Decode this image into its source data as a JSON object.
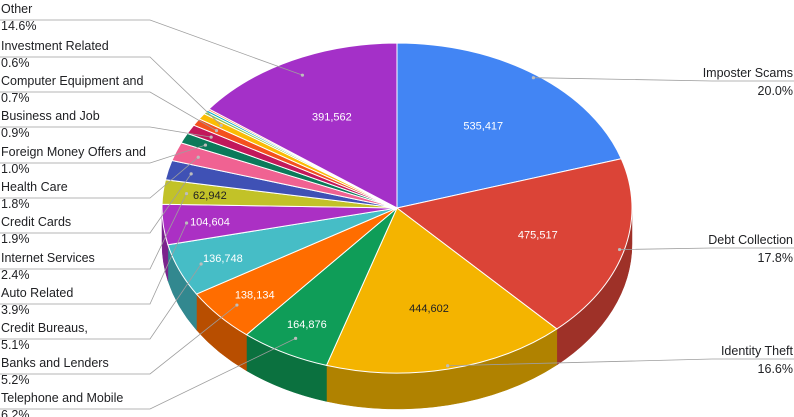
{
  "chart_data": {
    "type": "pie",
    "title": "",
    "style": "3d",
    "legend": "none",
    "slices": [
      {
        "name": "Imposter Scams",
        "value": 535417,
        "value_label": "535,417",
        "percent": "20.0%",
        "color": "#4285f4",
        "side": "right"
      },
      {
        "name": "Debt Collection",
        "value": 475517,
        "value_label": "475,517",
        "percent": "17.8%",
        "color": "#db4437",
        "side": "right"
      },
      {
        "name": "Identity Theft",
        "value": 444602,
        "value_label": "444,602",
        "percent": "16.6%",
        "color": "#f4b400",
        "side": "right"
      },
      {
        "name": "Telephone and Mobile",
        "value": 164876,
        "value_label": "164,876",
        "percent": "6.2%",
        "color": "#0f9d58",
        "side": "left"
      },
      {
        "name": "Banks and Lenders",
        "value": 138134,
        "value_label": "138,134",
        "percent": "5.2%",
        "color": "#ff6d00",
        "side": "left"
      },
      {
        "name": "Credit Bureaus,",
        "value": 136748,
        "value_label": "136,748",
        "percent": "5.1%",
        "color": "#46bdc6",
        "side": "left"
      },
      {
        "name": "Auto Related",
        "value": 104604,
        "value_label": "104,604",
        "percent": "3.9%",
        "color": "#ab30c4",
        "side": "left"
      },
      {
        "name": "Internet Services",
        "value": 62942,
        "value_label": "62,942",
        "percent": "2.4%",
        "color": "#c2c228",
        "side": "left"
      },
      {
        "name": "Credit Cards",
        "value": 50800,
        "value_label": "",
        "percent": "1.9%",
        "color": "#3f51b5",
        "side": "left"
      },
      {
        "name": "Health Care",
        "value": 48100,
        "value_label": "",
        "percent": "1.8%",
        "color": "#f06292",
        "side": "left"
      },
      {
        "name": "Foreign Money Offers and",
        "value": 26700,
        "value_label": "",
        "percent": "1.0%",
        "color": "#0b7a5a",
        "side": "left"
      },
      {
        "name": "Business and Job",
        "value": 24000,
        "value_label": "",
        "percent": "0.9%",
        "color": "#c2185b",
        "side": "left"
      },
      {
        "name": "Computer Equipment and",
        "value": 18700,
        "value_label": "",
        "percent": "0.7%",
        "color": "#f4511e",
        "side": "left"
      },
      {
        "name": "Investment Related",
        "value": 16000,
        "value_label": "",
        "percent": "0.6%",
        "color": "#fbbc04",
        "side": "left"
      },
      {
        "name": "",
        "value": 6000,
        "value_label": "",
        "percent": "",
        "color": "#8bc34a",
        "side": "none"
      },
      {
        "name": "",
        "value": 5000,
        "value_label": "",
        "percent": "",
        "color": "#00acc1",
        "side": "none"
      },
      {
        "name": "",
        "value": 4000,
        "value_label": "",
        "percent": "",
        "color": "#ff7043",
        "side": "none"
      },
      {
        "name": "Other",
        "value": 391562,
        "value_label": "391,562",
        "percent": "14.6%",
        "color": "#a430c8",
        "side": "left"
      }
    ]
  }
}
